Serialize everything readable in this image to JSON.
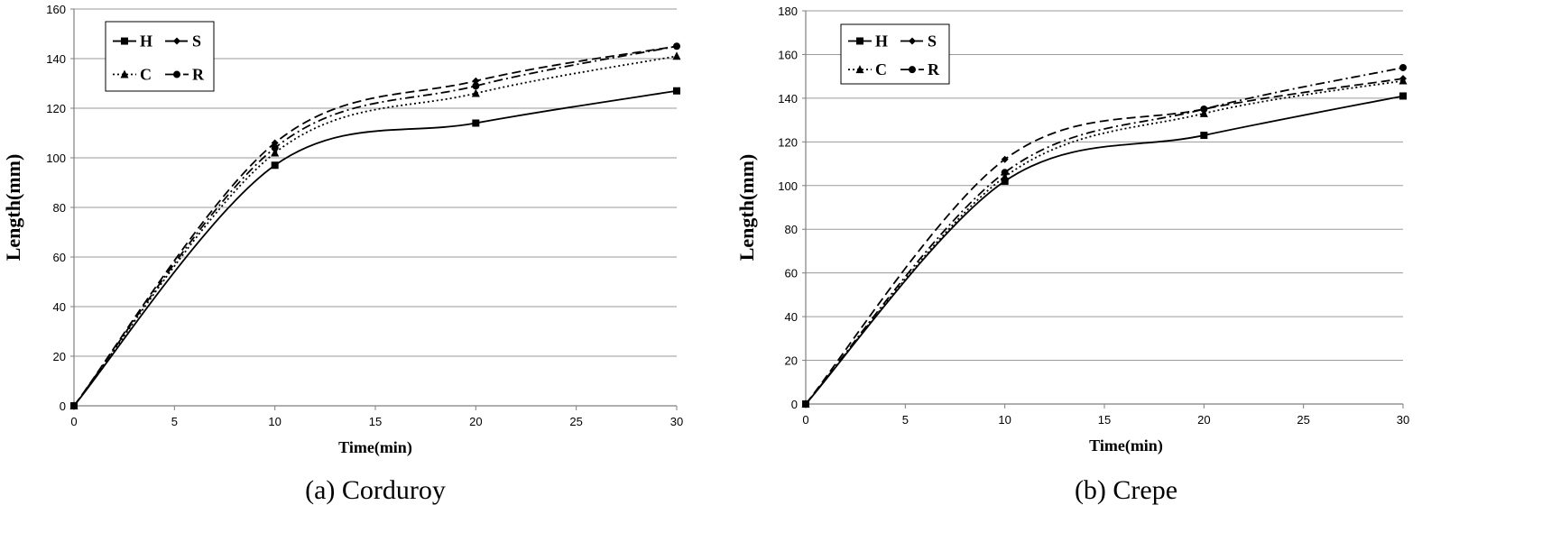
{
  "chart_data": [
    {
      "type": "line",
      "caption": "(a)  Corduroy",
      "xlabel": "Time(min)",
      "ylabel": "Length(mm)",
      "xlim": [
        0,
        30
      ],
      "ylim": [
        0,
        160
      ],
      "x_ticks": [
        0,
        5,
        10,
        15,
        20,
        25,
        30
      ],
      "y_ticks": [
        0,
        20,
        40,
        60,
        80,
        100,
        120,
        140,
        160
      ],
      "grid": true,
      "legend_position": "top-left",
      "x": [
        0,
        10,
        20,
        30
      ],
      "series": [
        {
          "name": "H",
          "values": [
            0,
            97,
            114,
            127
          ],
          "marker": "square",
          "dash": "solid"
        },
        {
          "name": "S",
          "values": [
            0,
            106,
            131,
            145
          ],
          "marker": "diamond",
          "dash": "dashed"
        },
        {
          "name": "C",
          "values": [
            0,
            102,
            126,
            141
          ],
          "marker": "triangle",
          "dash": "dotted"
        },
        {
          "name": "R",
          "values": [
            0,
            104,
            129,
            145
          ],
          "marker": "circle",
          "dash": "dashdot"
        }
      ]
    },
    {
      "type": "line",
      "caption": "(b)  Crepe",
      "xlabel": "Time(min)",
      "ylabel": "Length(mm)",
      "xlim": [
        0,
        30
      ],
      "ylim": [
        0,
        180
      ],
      "x_ticks": [
        0,
        5,
        10,
        15,
        20,
        25,
        30
      ],
      "y_ticks": [
        0,
        20,
        40,
        60,
        80,
        100,
        120,
        140,
        160,
        180
      ],
      "grid": true,
      "legend_position": "top-left",
      "x": [
        0,
        10,
        20,
        30
      ],
      "series": [
        {
          "name": "H",
          "values": [
            0,
            102,
            123,
            141
          ],
          "marker": "square",
          "dash": "solid"
        },
        {
          "name": "S",
          "values": [
            0,
            112,
            135,
            149
          ],
          "marker": "diamond",
          "dash": "dashed"
        },
        {
          "name": "C",
          "values": [
            0,
            104,
            133,
            148
          ],
          "marker": "triangle",
          "dash": "dotted"
        },
        {
          "name": "R",
          "values": [
            0,
            106,
            135,
            154
          ],
          "marker": "circle",
          "dash": "dashdot"
        }
      ]
    }
  ]
}
